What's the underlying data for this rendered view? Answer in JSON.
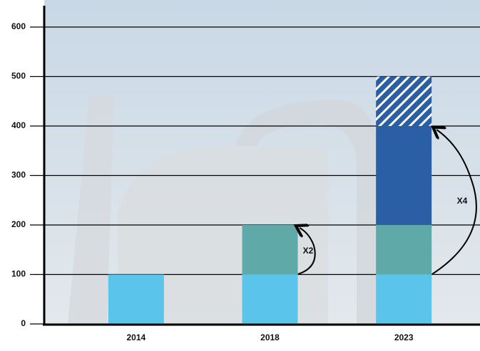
{
  "chart_data": {
    "type": "stacked_bar",
    "categories": [
      "2014",
      "2018",
      "2023"
    ],
    "series": [
      {
        "color": "#5bc4ea",
        "values": [
          100,
          100,
          100
        ]
      },
      {
        "color": "#5fa9a8",
        "values": [
          null,
          100,
          100
        ]
      },
      {
        "color": "#2a5ea5",
        "values": [
          null,
          null,
          200
        ]
      },
      {
        "color": "#2a5ea5",
        "hatched": true,
        "values": [
          null,
          null,
          100
        ]
      }
    ],
    "ylim": [
      0,
      600
    ],
    "yticks": [
      0,
      100,
      200,
      300,
      400,
      500,
      600
    ],
    "grid": true,
    "annotations": [
      "X2",
      "X4"
    ]
  }
}
